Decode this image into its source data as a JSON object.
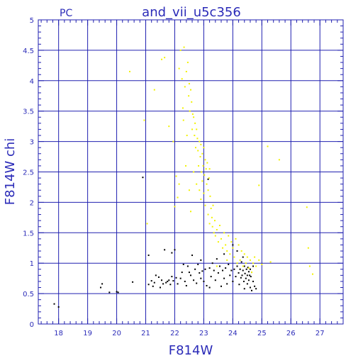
{
  "chart_data": {
    "type": "scatter",
    "title": "and_vii_u5c356",
    "subtitle": "PC",
    "xlabel": "F814W",
    "ylabel": "F814W  chi",
    "xlim": [
      17.3,
      27.8
    ],
    "ylim": [
      0,
      5
    ],
    "grid": true,
    "x_ticks_major": [
      "18",
      "19",
      "20",
      "21",
      "22",
      "23",
      "24",
      "25",
      "26",
      "27"
    ],
    "y_ticks_major": [
      "0",
      "0.5",
      "1",
      "1.5",
      "2",
      "2.5",
      "3",
      "3.5",
      "4",
      "4.5",
      "5"
    ],
    "colors": {
      "axis": "#2020b0",
      "grid": "#2020b0",
      "text": "#2b2bb8",
      "black_points": "#000000",
      "yellow_points": "#f2f200"
    },
    "series": [
      {
        "color": "#000000",
        "points": [
          [
            17.85,
            0.33
          ],
          [
            18.0,
            0.28
          ],
          [
            19.45,
            0.6
          ],
          [
            19.5,
            0.66
          ],
          [
            19.75,
            0.52
          ],
          [
            20.0,
            0.53
          ],
          [
            20.05,
            0.52
          ],
          [
            20.55,
            0.69
          ],
          [
            20.9,
            2.41
          ],
          [
            21.1,
            1.13
          ],
          [
            21.1,
            0.65
          ],
          [
            21.2,
            0.71
          ],
          [
            21.25,
            0.62
          ],
          [
            21.3,
            0.68
          ],
          [
            21.35,
            0.8
          ],
          [
            21.45,
            0.77
          ],
          [
            21.5,
            0.6
          ],
          [
            21.55,
            0.72
          ],
          [
            21.6,
            0.66
          ],
          [
            21.65,
            1.22
          ],
          [
            21.7,
            0.68
          ],
          [
            21.75,
            0.7
          ],
          [
            21.8,
            0.72
          ],
          [
            21.85,
            0.65
          ],
          [
            21.9,
            1.17
          ],
          [
            21.95,
            0.71
          ],
          [
            21.9,
            0.78
          ],
          [
            22.0,
            1.22
          ],
          [
            22.05,
            0.76
          ],
          [
            22.1,
            0.66
          ],
          [
            22.2,
            0.75
          ],
          [
            22.25,
            0.85
          ],
          [
            22.3,
            0.98
          ],
          [
            22.35,
            0.7
          ],
          [
            22.4,
            0.63
          ],
          [
            22.45,
            0.95
          ],
          [
            22.5,
            0.85
          ],
          [
            22.55,
            0.8
          ],
          [
            22.6,
            1.13
          ],
          [
            22.65,
            0.72
          ],
          [
            22.7,
            0.9
          ],
          [
            22.75,
            0.67
          ],
          [
            22.8,
            0.98
          ],
          [
            22.85,
            0.84
          ],
          [
            22.9,
            0.75
          ],
          [
            22.95,
            0.87
          ],
          [
            23.0,
            0.7
          ],
          [
            23.05,
            0.9
          ],
          [
            23.1,
            0.63
          ],
          [
            23.15,
            2.38
          ],
          [
            23.2,
            0.92
          ],
          [
            23.25,
            0.78
          ],
          [
            23.3,
            1.0
          ],
          [
            23.35,
            0.88
          ],
          [
            23.4,
            0.72
          ],
          [
            23.45,
            1.07
          ],
          [
            23.5,
            0.84
          ],
          [
            23.55,
            0.95
          ],
          [
            23.6,
            0.62
          ],
          [
            23.65,
            0.88
          ],
          [
            23.7,
            0.75
          ],
          [
            23.75,
            0.92
          ],
          [
            23.8,
            0.66
          ],
          [
            23.85,
            0.98
          ],
          [
            23.9,
            0.8
          ],
          [
            23.95,
            0.88
          ],
          [
            24.0,
            0.7
          ],
          [
            24.0,
            1.3
          ],
          [
            24.05,
            0.9
          ],
          [
            24.1,
            0.78
          ],
          [
            24.15,
            0.95
          ],
          [
            24.2,
            0.84
          ],
          [
            24.22,
            0.65
          ],
          [
            24.25,
            0.9
          ],
          [
            24.28,
            0.76
          ],
          [
            24.3,
            1.02
          ],
          [
            24.32,
            0.8
          ],
          [
            24.35,
            0.88
          ],
          [
            24.38,
            0.7
          ],
          [
            24.4,
            0.95
          ],
          [
            24.42,
            0.83
          ],
          [
            24.45,
            0.75
          ],
          [
            24.47,
            0.9
          ],
          [
            24.5,
            0.8
          ],
          [
            24.5,
            0.66
          ],
          [
            24.52,
            0.93
          ],
          [
            24.55,
            0.86
          ],
          [
            24.55,
            0.72
          ],
          [
            24.58,
            0.8
          ],
          [
            24.6,
            0.9
          ],
          [
            24.6,
            0.6
          ],
          [
            24.62,
            0.78
          ],
          [
            24.65,
            0.85
          ],
          [
            24.65,
            0.55
          ],
          [
            24.7,
            0.7
          ],
          [
            24.7,
            0.95
          ],
          [
            24.75,
            0.62
          ],
          [
            24.4,
            0.58
          ],
          [
            24.35,
            1.1
          ],
          [
            23.7,
            1.15
          ],
          [
            23.2,
            0.6
          ],
          [
            22.9,
            1.05
          ],
          [
            24.15,
            1.2
          ],
          [
            24.8,
            0.58
          ]
        ]
      },
      {
        "color": "#f2f200",
        "points": [
          [
            20.45,
            4.15
          ],
          [
            20.95,
            3.35
          ],
          [
            21.05,
            1.65
          ],
          [
            21.3,
            3.85
          ],
          [
            21.55,
            4.35
          ],
          [
            21.65,
            4.38
          ],
          [
            21.8,
            3.25
          ],
          [
            21.95,
            3.0
          ],
          [
            22.0,
            1.93
          ],
          [
            22.05,
            2.43
          ],
          [
            22.1,
            2.08
          ],
          [
            22.15,
            2.3
          ],
          [
            22.15,
            4.2
          ],
          [
            22.2,
            4.5
          ],
          [
            22.25,
            4.03
          ],
          [
            22.28,
            3.55
          ],
          [
            22.3,
            3.35
          ],
          [
            22.32,
            4.55
          ],
          [
            22.35,
            3.9
          ],
          [
            22.38,
            2.6
          ],
          [
            22.4,
            4.15
          ],
          [
            22.42,
            3.1
          ],
          [
            22.45,
            4.3
          ],
          [
            22.48,
            3.75
          ],
          [
            22.5,
            3.95
          ],
          [
            22.5,
            2.2
          ],
          [
            22.52,
            3.5
          ],
          [
            22.55,
            3.85
          ],
          [
            22.55,
            1.85
          ],
          [
            22.58,
            3.65
          ],
          [
            22.6,
            3.2
          ],
          [
            22.62,
            3.45
          ],
          [
            22.65,
            3.4
          ],
          [
            22.65,
            2.5
          ],
          [
            22.68,
            3.1
          ],
          [
            22.7,
            3.3
          ],
          [
            22.72,
            2.9
          ],
          [
            22.75,
            3.2
          ],
          [
            22.75,
            2.3
          ],
          [
            22.78,
            3.05
          ],
          [
            22.8,
            2.85
          ],
          [
            22.82,
            2.6
          ],
          [
            22.85,
            3.0
          ],
          [
            22.85,
            2.2
          ],
          [
            22.88,
            2.75
          ],
          [
            22.9,
            2.95
          ],
          [
            22.9,
            2.05
          ],
          [
            22.92,
            2.5
          ],
          [
            22.95,
            2.8
          ],
          [
            22.95,
            2.35
          ],
          [
            22.98,
            2.6
          ],
          [
            23.0,
            2.9
          ],
          [
            23.0,
            2.15
          ],
          [
            23.02,
            2.45
          ],
          [
            23.05,
            2.7
          ],
          [
            23.05,
            1.95
          ],
          [
            23.08,
            2.55
          ],
          [
            23.1,
            2.3
          ],
          [
            23.12,
            2.65
          ],
          [
            23.15,
            2.2
          ],
          [
            23.15,
            1.8
          ],
          [
            23.18,
            2.4
          ],
          [
            23.2,
            2.55
          ],
          [
            23.2,
            1.65
          ],
          [
            23.22,
            2.1
          ],
          [
            23.25,
            1.9
          ],
          [
            23.28,
            1.75
          ],
          [
            23.3,
            1.6
          ],
          [
            23.32,
            1.95
          ],
          [
            23.35,
            1.5
          ],
          [
            23.38,
            1.7
          ],
          [
            23.4,
            1.45
          ],
          [
            23.45,
            1.55
          ],
          [
            23.5,
            1.35
          ],
          [
            23.55,
            1.62
          ],
          [
            23.6,
            1.4
          ],
          [
            23.65,
            1.25
          ],
          [
            23.7,
            1.5
          ],
          [
            23.75,
            1.3
          ],
          [
            23.8,
            1.2
          ],
          [
            23.85,
            1.45
          ],
          [
            23.9,
            1.15
          ],
          [
            23.95,
            1.35
          ],
          [
            24.0,
            1.25
          ],
          [
            24.05,
            1.1
          ],
          [
            24.1,
            1.4
          ],
          [
            24.15,
            1.0
          ],
          [
            24.2,
            1.3
          ],
          [
            24.25,
            1.05
          ],
          [
            24.3,
            1.2
          ],
          [
            24.35,
            0.95
          ],
          [
            24.4,
            1.15
          ],
          [
            24.45,
            1.0
          ],
          [
            24.5,
            1.1
          ],
          [
            24.55,
            0.92
          ],
          [
            24.6,
            1.05
          ],
          [
            24.65,
            0.85
          ],
          [
            24.7,
            1.0
          ],
          [
            24.75,
            1.1
          ],
          [
            24.8,
            0.95
          ],
          [
            24.9,
            1.05
          ],
          [
            25.0,
            0.98
          ],
          [
            25.2,
            2.92
          ],
          [
            25.3,
            1.02
          ],
          [
            25.6,
            2.7
          ],
          [
            26.55,
            1.92
          ],
          [
            26.6,
            1.25
          ],
          [
            26.65,
            0.95
          ],
          [
            26.75,
            0.82
          ],
          [
            24.9,
            2.28
          ],
          [
            23.45,
            0.95
          ],
          [
            23.8,
            1.05
          ]
        ]
      }
    ]
  }
}
